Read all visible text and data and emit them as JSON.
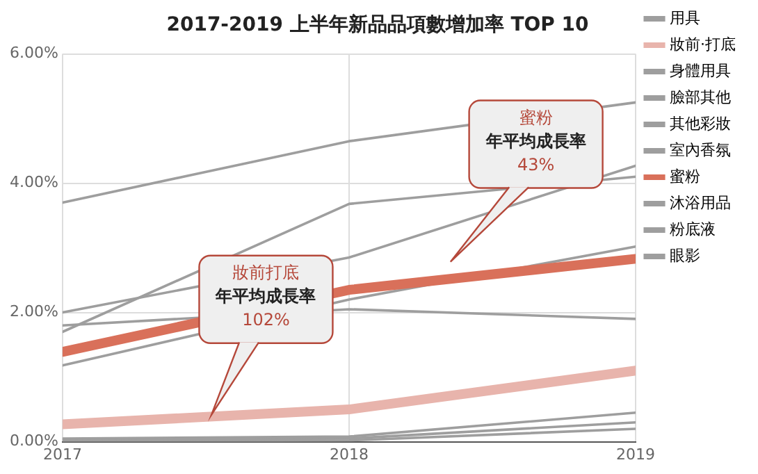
{
  "chart_data": {
    "type": "line",
    "title": "2017-2019 上半年新品品項數增加率 TOP 10",
    "x": [
      2017,
      2018,
      2019
    ],
    "xlim": [
      2017,
      2019
    ],
    "xticks": [
      2017,
      2018,
      2019
    ],
    "ylim": [
      0,
      6
    ],
    "yticks": [
      {
        "value": 0,
        "label": "0.00%"
      },
      {
        "value": 2,
        "label": "2.00%"
      },
      {
        "value": 4,
        "label": "4.00%"
      },
      {
        "value": 6,
        "label": "6.00%"
      }
    ],
    "grid": true,
    "legend": "right",
    "marker": "none",
    "line_style": "solid",
    "series": [
      {
        "name": "用具",
        "color": "#9e9e9e",
        "values": [
          3.7,
          4.65,
          5.25
        ]
      },
      {
        "name": "妝前·打底",
        "color": "#e8b4ac",
        "values": [
          0.27,
          0.5,
          1.1
        ]
      },
      {
        "name": "身體用具",
        "color": "#9e9e9e",
        "values": [
          1.7,
          3.68,
          4.1
        ]
      },
      {
        "name": "臉部其他",
        "color": "#9e9e9e",
        "values": [
          2.0,
          2.85,
          4.27
        ]
      },
      {
        "name": "其他彩妝",
        "color": "#9e9e9e",
        "values": [
          1.8,
          2.05,
          1.9
        ]
      },
      {
        "name": "室內香氛",
        "color": "#9e9e9e",
        "values": [
          0.05,
          0.08,
          0.45
        ]
      },
      {
        "name": "蜜粉",
        "color": "#d9705a",
        "values": [
          1.39,
          2.35,
          2.83
        ]
      },
      {
        "name": "沐浴用品",
        "color": "#9e9e9e",
        "values": [
          1.18,
          2.2,
          3.02
        ]
      },
      {
        "name": "粉底液",
        "color": "#9e9e9e",
        "values": [
          0.03,
          0.05,
          0.3
        ]
      },
      {
        "name": "眼影",
        "color": "#9e9e9e",
        "values": [
          0,
          0.02,
          0.2
        ]
      }
    ],
    "annotations": [
      "妝前打底",
      "年平均成長率",
      "102%",
      "蜜粉",
      "年平均成長率",
      "43%"
    ]
  }
}
